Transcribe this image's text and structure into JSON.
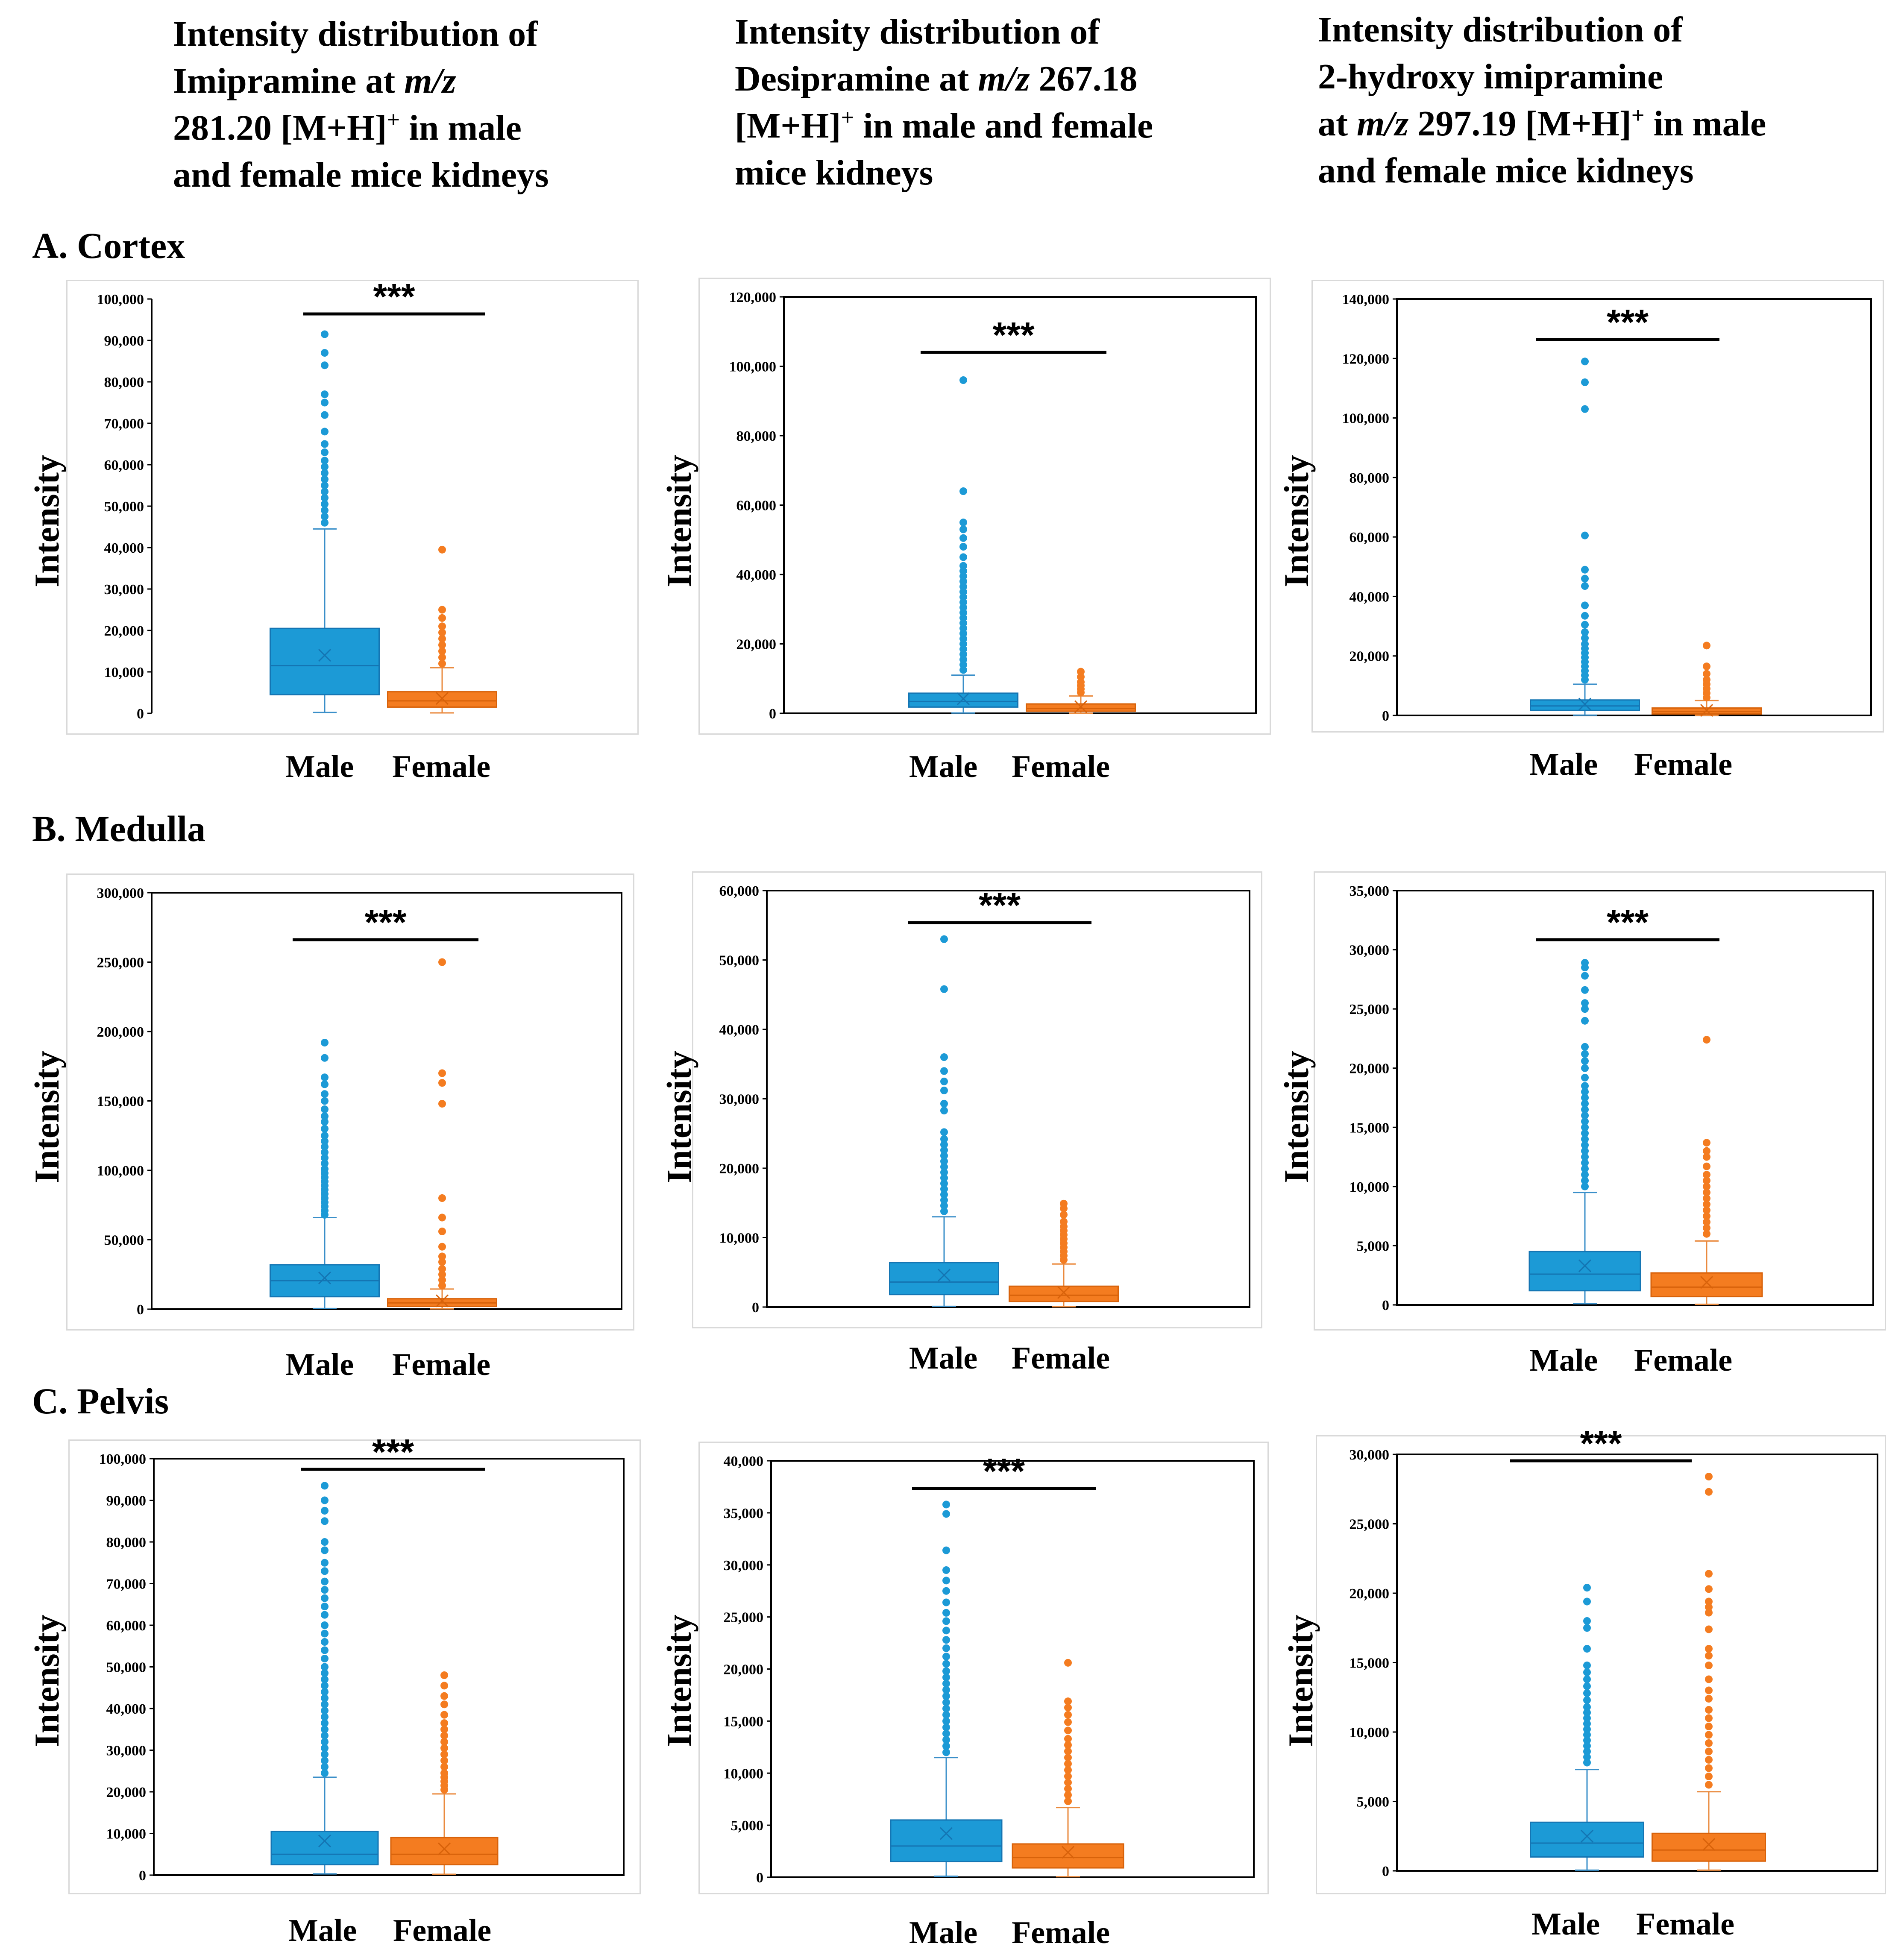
{
  "column_titles": [
    {
      "l1": "Intensity distribution of",
      "l2a": "Imipramine at ",
      "l2b": "m/z",
      "l3a": "281.20 [M+H]",
      "l3sup": "+",
      "l3b": " in male",
      "l4": "and female mice kidneys"
    },
    {
      "l1": "Intensity distribution of",
      "l2a": "Desipramine at ",
      "l2b": "m/z",
      "l2c": " 267.18",
      "l3a": "[M+H]",
      "l3sup": "+",
      "l3b": " in male and female",
      "l4": "mice kidneys"
    },
    {
      "l1": "Intensity distribution of",
      "l2": "2-hydroxy imipramine",
      "l3a": "at ",
      "l3b": "m/z",
      "l3c": " 297.19 [M+H]",
      "l3sup": "+",
      "l3d": " in male",
      "l4": "and female mice kidneys"
    }
  ],
  "row_labels": [
    "A. Cortex",
    "B. Medulla",
    "C. Pelvis"
  ],
  "ylabel": "Intensity",
  "groups": [
    "Male",
    "Female"
  ],
  "significance": "***",
  "colors": {
    "male": "#1c9ad6",
    "male_edge": "#1475b3",
    "female": "#f47c20",
    "female_edge": "#d8620a",
    "whisker": "#3a8fc9",
    "whisker_f": "#ea8a3e"
  },
  "chart_data": [
    {
      "type": "box",
      "region": "Cortex",
      "compound": "Imipramine",
      "ymax": 100000,
      "tick_step": 10000,
      "ticks": [
        "0",
        "10,000",
        "20,000",
        "30,000",
        "40,000",
        "50,000",
        "60,000",
        "70,000",
        "80,000",
        "90,000",
        "100,000"
      ],
      "male": {
        "q1": 4500,
        "median": 11500,
        "q3": 20500,
        "mean": 14000,
        "whisker_low": 200,
        "whisker_high": 44500,
        "outliers": [
          46000,
          47500,
          49000,
          50500,
          52000,
          53500,
          55000,
          56500,
          58000,
          59500,
          61000,
          63000,
          65000,
          68000,
          72000,
          75000,
          77000,
          84000,
          87000,
          91500
        ]
      },
      "female": {
        "q1": 1500,
        "median": 3000,
        "q3": 5200,
        "mean": 3600,
        "whisker_low": 100,
        "whisker_high": 11000,
        "outliers": [
          12000,
          13500,
          15000,
          16500,
          18000,
          19500,
          21000,
          23000,
          25000,
          39500
        ]
      }
    },
    {
      "type": "box",
      "region": "Cortex",
      "compound": "Desipramine",
      "ymax": 120000,
      "tick_step": 20000,
      "ticks": [
        "0",
        "20,000",
        "40,000",
        "60,000",
        "80,000",
        "100,000",
        "120,000"
      ],
      "male": {
        "q1": 1800,
        "median": 3400,
        "q3": 5800,
        "mean": 4200,
        "whisker_low": 100,
        "whisker_high": 11000,
        "outliers": [
          12500,
          14000,
          15500,
          17000,
          18500,
          20000,
          21500,
          23000,
          24500,
          26000,
          27500,
          29000,
          30500,
          32000,
          33500,
          35000,
          36500,
          38000,
          39500,
          41000,
          42500,
          45000,
          48000,
          50500,
          53000,
          55000,
          64000,
          96000
        ]
      },
      "female": {
        "q1": 600,
        "median": 1400,
        "q3": 2700,
        "mean": 1900,
        "whisker_low": 50,
        "whisker_high": 5000,
        "outliers": [
          6000,
          7000,
          8000,
          9000,
          10500,
          12000
        ]
      }
    },
    {
      "type": "box",
      "region": "Cortex",
      "compound": "2-hydroxy imipramine",
      "ymax": 140000,
      "tick_step": 20000,
      "ticks": [
        "0",
        "20,000",
        "40,000",
        "60,000",
        "80,000",
        "100,000",
        "120,000",
        "140,000"
      ],
      "male": {
        "q1": 1700,
        "median": 3200,
        "q3": 5200,
        "mean": 3800,
        "whisker_low": 100,
        "whisker_high": 10500,
        "outliers": [
          12000,
          13500,
          15000,
          16500,
          18000,
          19500,
          21000,
          22500,
          24000,
          26000,
          28000,
          30500,
          33500,
          37000,
          43500,
          46000,
          49000,
          60500,
          103000,
          112000,
          119000
        ]
      },
      "female": {
        "q1": 500,
        "median": 1300,
        "q3": 2500,
        "mean": 1700,
        "whisker_low": 50,
        "whisker_high": 5000,
        "outliers": [
          6000,
          7500,
          9000,
          10500,
          12000,
          14000,
          16500,
          23500
        ]
      }
    },
    {
      "type": "box",
      "region": "Medulla",
      "compound": "Imipramine",
      "ymax": 300000,
      "tick_step": 50000,
      "ticks": [
        "0",
        "50,000",
        "100,000",
        "150,000",
        "200,000",
        "250,000",
        "300,000"
      ],
      "male": {
        "q1": 9000,
        "median": 20500,
        "q3": 32000,
        "mean": 22500,
        "whisker_low": 500,
        "whisker_high": 66000,
        "outliers": [
          68000,
          71000,
          74000,
          77000,
          80000,
          83000,
          86000,
          89000,
          92000,
          95000,
          98000,
          101000,
          105000,
          109000,
          113000,
          117000,
          121000,
          125000,
          130000,
          135000,
          139000,
          144000,
          150000,
          155000,
          162000,
          167000,
          181000,
          192000
        ]
      },
      "female": {
        "q1": 2000,
        "median": 4500,
        "q3": 7500,
        "mean": 6000,
        "whisker_low": 200,
        "whisker_high": 14500,
        "outliers": [
          17000,
          21000,
          25000,
          29000,
          34000,
          38000,
          45000,
          56000,
          66000,
          80000,
          148000,
          163000,
          170000,
          250000
        ]
      }
    },
    {
      "type": "box",
      "region": "Medulla",
      "compound": "Desipramine",
      "ymax": 60000,
      "tick_step": 10000,
      "ticks": [
        "0",
        "10,000",
        "20,000",
        "30,000",
        "40,000",
        "50,000",
        "60,000"
      ],
      "male": {
        "q1": 1800,
        "median": 3600,
        "q3": 6400,
        "mean": 4600,
        "whisker_low": 100,
        "whisker_high": 13000,
        "outliers": [
          13800,
          14600,
          15400,
          16200,
          17000,
          17800,
          18600,
          19400,
          20200,
          21000,
          21800,
          22600,
          23400,
          24200,
          25200,
          28300,
          29300,
          31200,
          32500,
          34000,
          36000,
          45800,
          53000
        ]
      },
      "female": {
        "q1": 800,
        "median": 1700,
        "q3": 3000,
        "mean": 2100,
        "whisker_low": 50,
        "whisker_high": 6200,
        "outliers": [
          6800,
          7400,
          8000,
          8600,
          9200,
          9800,
          10400,
          11000,
          11600,
          12300,
          13300,
          14200,
          14900
        ]
      }
    },
    {
      "type": "box",
      "region": "Medulla",
      "compound": "2-hydroxy imipramine",
      "ymax": 35000,
      "tick_step": 5000,
      "ticks": [
        "0",
        "5,000",
        "10,000",
        "15,000",
        "20,000",
        "25,000",
        "30,000",
        "35,000"
      ],
      "male": {
        "q1": 1200,
        "median": 2600,
        "q3": 4500,
        "mean": 3300,
        "whisker_low": 100,
        "whisker_high": 9500,
        "outliers": [
          10000,
          10500,
          11000,
          11500,
          12000,
          12500,
          13000,
          13500,
          14000,
          14500,
          15000,
          15500,
          16000,
          16500,
          17000,
          17500,
          18000,
          18500,
          19200,
          20000,
          20600,
          21200,
          21800,
          24000,
          25000,
          25500,
          26600,
          27800,
          28500,
          28900
        ]
      },
      "female": {
        "q1": 700,
        "median": 1500,
        "q3": 2700,
        "mean": 1900,
        "whisker_low": 50,
        "whisker_high": 5400,
        "outliers": [
          6000,
          6500,
          7000,
          7500,
          8000,
          8500,
          9000,
          9500,
          10000,
          10500,
          11000,
          11700,
          12500,
          13000,
          13700,
          22400
        ]
      }
    },
    {
      "type": "box",
      "region": "Pelvis",
      "compound": "Imipramine",
      "ymax": 100000,
      "tick_step": 10000,
      "ticks": [
        "0",
        "10,000",
        "20,000",
        "30,000",
        "40,000",
        "50,000",
        "60,000",
        "70,000",
        "80,000",
        "90,000",
        "100,000"
      ],
      "male": {
        "q1": 2500,
        "median": 5000,
        "q3": 10500,
        "mean": 8200,
        "whisker_low": 300,
        "whisker_high": 23500,
        "outliers": [
          24500,
          26000,
          27500,
          29000,
          30500,
          32000,
          33500,
          35000,
          36500,
          38000,
          39500,
          41000,
          42500,
          44000,
          45500,
          47000,
          48500,
          50000,
          52000,
          54000,
          56000,
          58000,
          60000,
          62500,
          64500,
          66500,
          68500,
          70500,
          73000,
          75000,
          78000,
          80000,
          85000,
          87500,
          90000,
          93500
        ]
      },
      "female": {
        "q1": 2500,
        "median": 5000,
        "q3": 9000,
        "mean": 6300,
        "whisker_low": 200,
        "whisker_high": 19500,
        "outliers": [
          20500,
          21500,
          22500,
          23500,
          24500,
          26000,
          27500,
          29000,
          30500,
          32000,
          33500,
          35000,
          36500,
          38500,
          41000,
          43000,
          45500,
          48000
        ]
      }
    },
    {
      "type": "box",
      "region": "Pelvis",
      "compound": "Desipramine",
      "ymax": 40000,
      "tick_step": 5000,
      "ticks": [
        "0",
        "5,000",
        "10,000",
        "15,000",
        "20,000",
        "25,000",
        "30,000",
        "35,000",
        "40,000"
      ],
      "male": {
        "q1": 1500,
        "median": 3000,
        "q3": 5500,
        "mean": 4200,
        "whisker_low": 100,
        "whisker_high": 11500,
        "outliers": [
          12000,
          12600,
          13200,
          13800,
          14400,
          15000,
          15600,
          16200,
          16800,
          17400,
          18000,
          18600,
          19200,
          19800,
          20500,
          21200,
          22000,
          22800,
          23700,
          24600,
          25400,
          26400,
          27500,
          28500,
          29500,
          31400,
          34900,
          35800
        ]
      },
      "female": {
        "q1": 900,
        "median": 1900,
        "q3": 3200,
        "mean": 2400,
        "whisker_low": 50,
        "whisker_high": 6700,
        "outliers": [
          7300,
          7900,
          8500,
          9100,
          9700,
          10300,
          10900,
          11500,
          12100,
          12700,
          13300,
          14100,
          14900,
          15600,
          16300,
          16900,
          20600
        ]
      }
    },
    {
      "type": "box",
      "region": "Pelvis",
      "compound": "2-hydroxy imipramine",
      "ymax": 30000,
      "tick_step": 5000,
      "ticks": [
        "0",
        "5,000",
        "10,000",
        "15,000",
        "20,000",
        "25,000",
        "30,000"
      ],
      "male": {
        "q1": 1000,
        "median": 2000,
        "q3": 3500,
        "mean": 2500,
        "whisker_low": 50,
        "whisker_high": 7300,
        "outliers": [
          7800,
          8200,
          8600,
          9000,
          9400,
          9800,
          10200,
          10600,
          11000,
          11400,
          11800,
          12300,
          12800,
          13300,
          13800,
          14300,
          14800,
          16000,
          17500,
          18000,
          19400,
          20400
        ]
      },
      "female": {
        "q1": 700,
        "median": 1500,
        "q3": 2700,
        "mean": 1900,
        "whisker_low": 50,
        "whisker_high": 5700,
        "outliers": [
          6200,
          6800,
          7400,
          8000,
          8600,
          9200,
          9800,
          10400,
          11000,
          11600,
          12400,
          13000,
          13800,
          14800,
          15500,
          16000,
          17400,
          18600,
          19000,
          19400,
          20300,
          21400,
          27300,
          28400
        ]
      }
    }
  ]
}
